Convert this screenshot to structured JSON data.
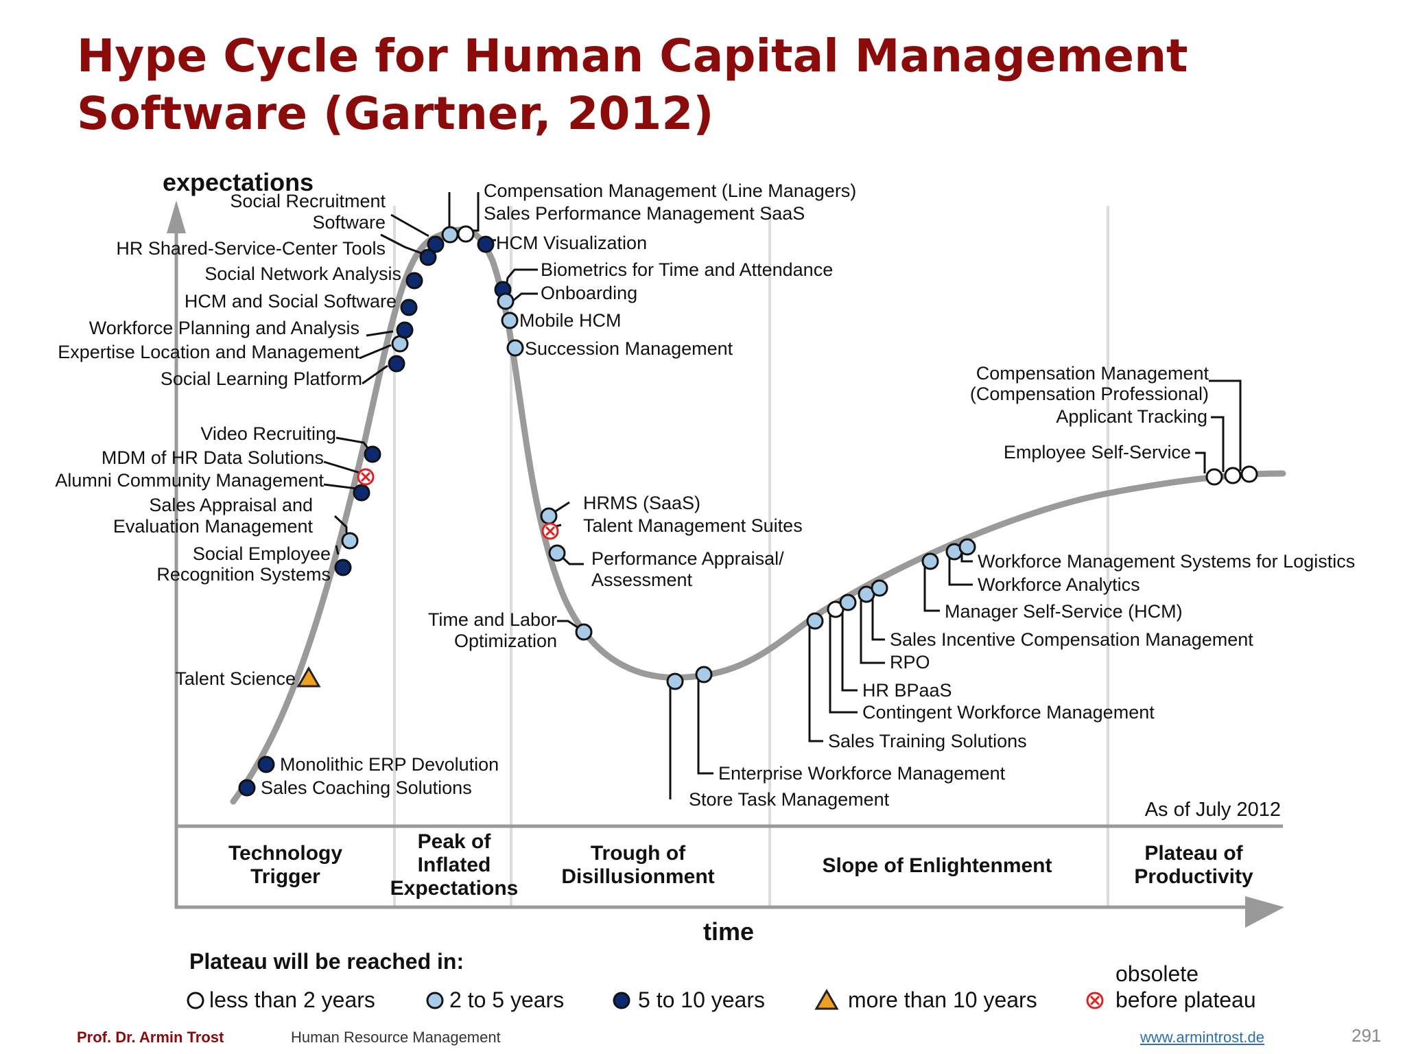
{
  "title": {
    "line1": "Hype Cycle for Human Capital Management",
    "line2": "Software (Gartner, 2012)"
  },
  "axes": {
    "y_label": "expectations",
    "x_label": "time"
  },
  "as_of": "As of July 2012",
  "phases": [
    {
      "lines": [
        "Technology",
        "Trigger"
      ]
    },
    {
      "lines": [
        "Peak of",
        "Inflated",
        "Expectations"
      ]
    },
    {
      "lines": [
        "Trough of",
        "Disillusionment"
      ]
    },
    {
      "lines": [
        "Slope of Enlightenment"
      ]
    },
    {
      "lines": [
        "Plateau of",
        "Productivity"
      ]
    }
  ],
  "legend": {
    "title": "Plateau will be reached in:",
    "items": [
      {
        "marker": "white",
        "label": "less than 2 years"
      },
      {
        "marker": "light-blue",
        "label": "2 to 5 years"
      },
      {
        "marker": "dark-blue",
        "label": "5 to 10 years"
      },
      {
        "marker": "triangle",
        "label": "more than 10 years"
      },
      {
        "marker": "obsolete",
        "label_lines": [
          "obsolete",
          "before plateau"
        ]
      }
    ]
  },
  "colors": {
    "title": "#8b0a0a",
    "dark_blue": "#0d2a6e",
    "light_blue": "#a8cbe8",
    "white": "#ffffff",
    "triangle": "#f0a020",
    "obsolete": "#e02020",
    "curve": "#9a9a9a"
  },
  "technologies": [
    {
      "name": "Sales Coaching Solutions",
      "phase": "Technology Trigger",
      "marker": "dark-blue"
    },
    {
      "name": "Monolithic ERP Devolution",
      "phase": "Technology Trigger",
      "marker": "dark-blue"
    },
    {
      "name": "Talent Science",
      "phase": "Technology Trigger",
      "marker": "triangle"
    },
    {
      "name": "Social Employee Recognition Systems",
      "phase": "Technology Trigger",
      "marker": "dark-blue"
    },
    {
      "name": "Sales Appraisal and Evaluation Management",
      "phase": "Technology Trigger",
      "marker": "light-blue"
    },
    {
      "name": "Alumni Community Management",
      "phase": "Technology Trigger",
      "marker": "dark-blue"
    },
    {
      "name": "MDM of HR Data Solutions",
      "phase": "Technology Trigger",
      "marker": "obsolete"
    },
    {
      "name": "Video Recruiting",
      "phase": "Technology Trigger",
      "marker": "dark-blue"
    },
    {
      "name": "Social Learning Platform",
      "phase": "Peak of Inflated Expectations",
      "marker": "dark-blue"
    },
    {
      "name": "Expertise Location and Management",
      "phase": "Peak of Inflated Expectations",
      "marker": "light-blue"
    },
    {
      "name": "Workforce Planning and Analysis",
      "phase": "Peak of Inflated Expectations",
      "marker": "dark-blue"
    },
    {
      "name": "HCM and Social Software",
      "phase": "Peak of Inflated Expectations",
      "marker": "dark-blue"
    },
    {
      "name": "Social Network Analysis",
      "phase": "Peak of Inflated Expectations",
      "marker": "dark-blue"
    },
    {
      "name": "HR Shared-Service-Center Tools",
      "phase": "Peak of Inflated Expectations",
      "marker": "dark-blue"
    },
    {
      "name": "Social Recruitment Software",
      "phase": "Peak of Inflated Expectations",
      "marker": "dark-blue"
    },
    {
      "name": "Compensation Management (Line Managers)",
      "phase": "Peak of Inflated Expectations",
      "marker": "light-blue"
    },
    {
      "name": "Sales Performance Management SaaS",
      "phase": "Peak of Inflated Expectations",
      "marker": "white"
    },
    {
      "name": "HCM Visualization",
      "phase": "Peak of Inflated Expectations",
      "marker": "dark-blue"
    },
    {
      "name": "Biometrics for Time and Attendance",
      "phase": "Trough of Disillusionment",
      "marker": "dark-blue"
    },
    {
      "name": "Onboarding",
      "phase": "Trough of Disillusionment",
      "marker": "light-blue"
    },
    {
      "name": "Mobile HCM",
      "phase": "Trough of Disillusionment",
      "marker": "light-blue"
    },
    {
      "name": "Succession Management",
      "phase": "Trough of Disillusionment",
      "marker": "light-blue"
    },
    {
      "name": "HRMS (SaaS)",
      "phase": "Trough of Disillusionment",
      "marker": "light-blue"
    },
    {
      "name": "Talent Management Suites",
      "phase": "Trough of Disillusionment",
      "marker": "obsolete"
    },
    {
      "name": "Performance Appraisal/ Assessment",
      "phase": "Trough of Disillusionment",
      "marker": "light-blue"
    },
    {
      "name": "Time and Labor Optimization",
      "phase": "Trough of Disillusionment",
      "marker": "light-blue"
    },
    {
      "name": "Store Task Management",
      "phase": "Trough of Disillusionment",
      "marker": "light-blue"
    },
    {
      "name": "Enterprise Workforce Management",
      "phase": "Trough of Disillusionment",
      "marker": "light-blue"
    },
    {
      "name": "Sales Training Solutions",
      "phase": "Slope of Enlightenment",
      "marker": "light-blue"
    },
    {
      "name": "Contingent Workforce Management",
      "phase": "Slope of Enlightenment",
      "marker": "white"
    },
    {
      "name": "HR BPaaS",
      "phase": "Slope of Enlightenment",
      "marker": "light-blue"
    },
    {
      "name": "RPO",
      "phase": "Slope of Enlightenment",
      "marker": "light-blue"
    },
    {
      "name": "Sales Incentive Compensation Management",
      "phase": "Slope of Enlightenment",
      "marker": "light-blue"
    },
    {
      "name": "Manager Self-Service (HCM)",
      "phase": "Slope of Enlightenment",
      "marker": "light-blue"
    },
    {
      "name": "Workforce Analytics",
      "phase": "Slope of Enlightenment",
      "marker": "light-blue"
    },
    {
      "name": "Workforce Management Systems for Logistics",
      "phase": "Slope of Enlightenment",
      "marker": "light-blue"
    },
    {
      "name": "Employee Self-Service",
      "phase": "Plateau of Productivity",
      "marker": "white"
    },
    {
      "name": "Applicant Tracking",
      "phase": "Plateau of Productivity",
      "marker": "white"
    },
    {
      "name": "Compensation Management (Compensation Professional)",
      "phase": "Plateau of Productivity",
      "marker": "white"
    }
  ],
  "footer": {
    "author": "Prof. Dr. Armin Trost",
    "course": "Human Resource Management",
    "url": "www.armintrost.de",
    "page": "291"
  }
}
